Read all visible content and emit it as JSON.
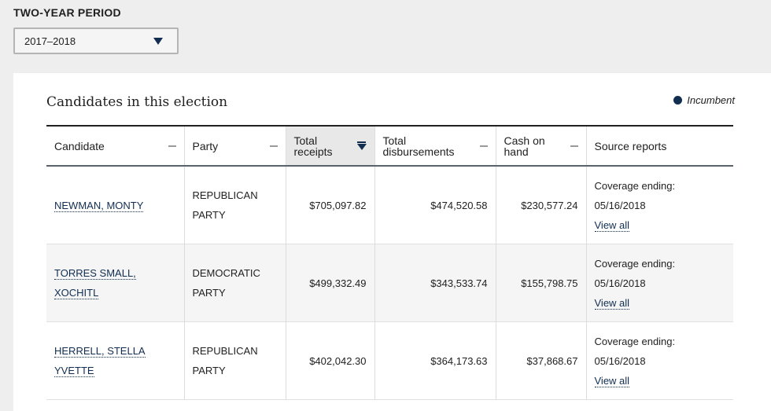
{
  "period": {
    "label": "TWO-YEAR PERIOD",
    "selected": "2017–2018"
  },
  "panel": {
    "title": "Candidates in this election",
    "legend_label": "Incumbent"
  },
  "table": {
    "columns": [
      {
        "label": "Candidate"
      },
      {
        "label": "Party"
      },
      {
        "label_line1": "Total",
        "label_line2": "receipts"
      },
      {
        "label_line1": "Total",
        "label_line2": "disbursements"
      },
      {
        "label_line1": "Cash on",
        "label_line2": "hand"
      },
      {
        "label": "Source reports"
      }
    ],
    "rows": [
      {
        "name_line1": "NEWMAN, MONTY",
        "name_line2": "",
        "party_line1": "REPUBLICAN",
        "party_line2": "PARTY",
        "receipts": "$705,097.82",
        "disbursements": "$474,520.58",
        "cash": "$230,577.24",
        "coverage_label": "Coverage ending:",
        "coverage_date": "05/16/2018",
        "view_all": "View all"
      },
      {
        "name_line1": "TORRES SMALL,",
        "name_line2": "XOCHITL",
        "party_line1": "DEMOCRATIC",
        "party_line2": "PARTY",
        "receipts": "$499,332.49",
        "disbursements": "$343,533.74",
        "cash": "$155,798.75",
        "coverage_label": "Coverage ending:",
        "coverage_date": "05/16/2018",
        "view_all": "View all"
      },
      {
        "name_line1": "HERRELL, STELLA",
        "name_line2": "YVETTE",
        "party_line1": "REPUBLICAN",
        "party_line2": "PARTY",
        "receipts": "$402,042.30",
        "disbursements": "$364,173.63",
        "cash": "$37,868.67",
        "coverage_label": "Coverage ending:",
        "coverage_date": "05/16/2018",
        "view_all": "View all"
      }
    ]
  },
  "colors": {
    "accent": "#112e51",
    "page_bg": "#eeeeee"
  }
}
